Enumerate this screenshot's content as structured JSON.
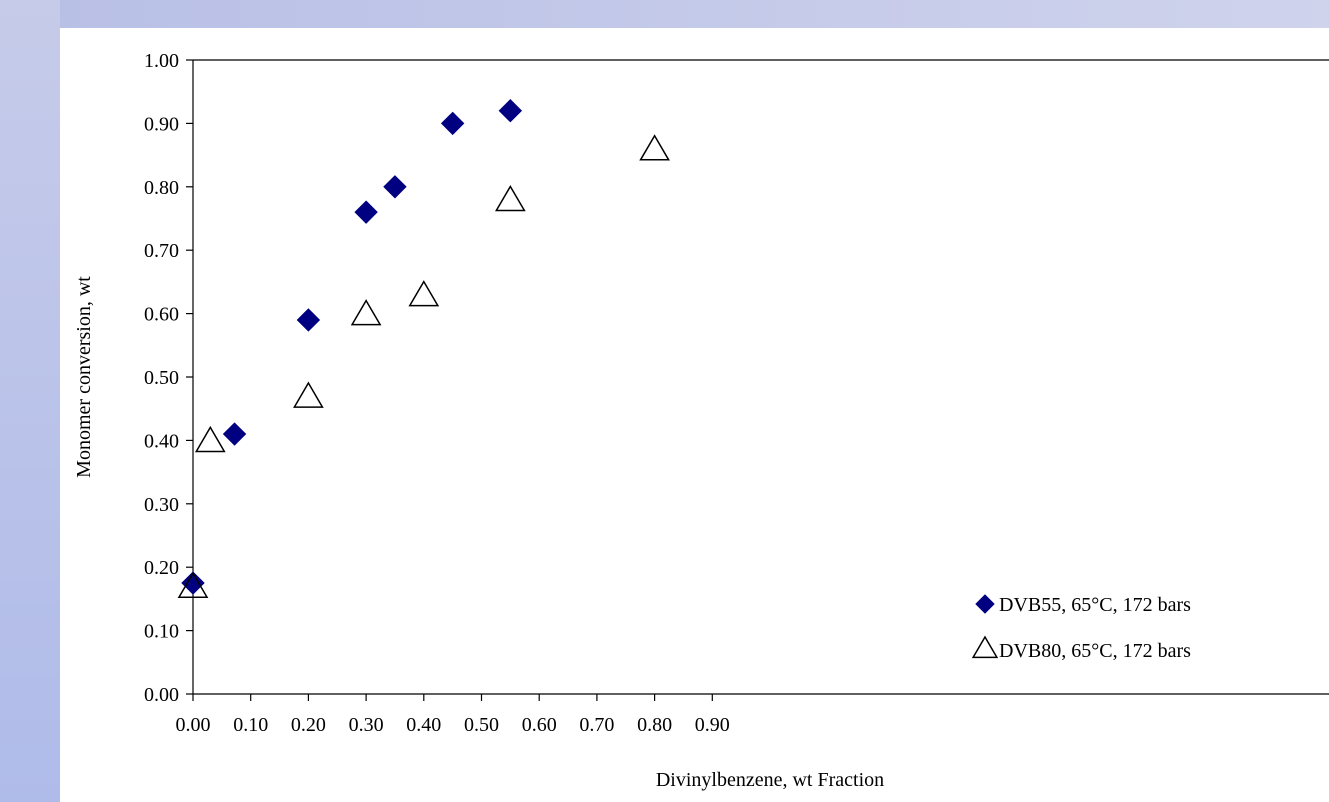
{
  "chart_data": {
    "type": "scatter",
    "title": "",
    "xlabel": "Divinylbenzene, wt Fraction",
    "ylabel": "Monomer conversion, wt",
    "xlim": [
      0,
      0.98
    ],
    "ylim": [
      0,
      1
    ],
    "x_ticks": [
      "0.00",
      "0.10",
      "0.20",
      "0.30",
      "0.40",
      "0.50",
      "0.60",
      "0.70",
      "0.80",
      "0.90"
    ],
    "y_ticks": [
      "0.00",
      "0.10",
      "0.20",
      "0.30",
      "0.40",
      "0.50",
      "0.60",
      "0.70",
      "0.80",
      "0.90",
      "1.00"
    ],
    "grid": false,
    "legend_position": "bottom-right",
    "series": [
      {
        "name": "DVB55, 65°C, 172 bars",
        "marker": "diamond",
        "color": "#000080",
        "points": [
          {
            "x": 0.0,
            "y": 0.175
          },
          {
            "x": 0.072,
            "y": 0.41
          },
          {
            "x": 0.2,
            "y": 0.59
          },
          {
            "x": 0.3,
            "y": 0.76
          },
          {
            "x": 0.35,
            "y": 0.8
          },
          {
            "x": 0.45,
            "y": 0.9
          },
          {
            "x": 0.55,
            "y": 0.92
          }
        ]
      },
      {
        "name": "DVB80, 65°C, 172 bars",
        "marker": "triangle-open",
        "color": "#000000",
        "points": [
          {
            "x": 0.0,
            "y": 0.17
          },
          {
            "x": 0.03,
            "y": 0.4
          },
          {
            "x": 0.2,
            "y": 0.47
          },
          {
            "x": 0.3,
            "y": 0.6
          },
          {
            "x": 0.4,
            "y": 0.63
          },
          {
            "x": 0.55,
            "y": 0.78
          },
          {
            "x": 0.8,
            "y": 0.86
          }
        ]
      }
    ]
  }
}
